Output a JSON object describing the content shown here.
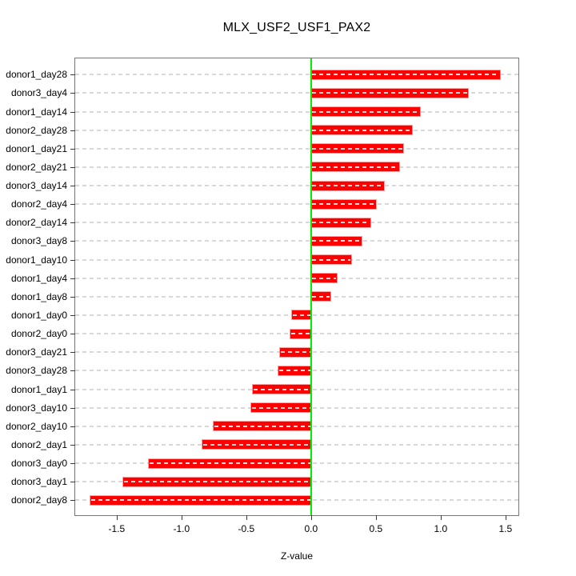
{
  "chart_data": {
    "type": "bar",
    "orientation": "horizontal",
    "title": "MLX_USF2_USF1_PAX2",
    "xlabel": "Z-value",
    "ylabel": "",
    "categories": [
      "donor1_day28",
      "donor3_day4",
      "donor1_day14",
      "donor2_day28",
      "donor1_day21",
      "donor2_day21",
      "donor3_day14",
      "donor2_day4",
      "donor2_day14",
      "donor3_day8",
      "donor1_day10",
      "donor1_day4",
      "donor1_day8",
      "donor1_day0",
      "donor2_day0",
      "donor3_day21",
      "donor3_day28",
      "donor1_day1",
      "donor3_day10",
      "donor2_day10",
      "donor2_day1",
      "donor3_day0",
      "donor3_day1",
      "donor2_day8"
    ],
    "values": [
      1.46,
      1.21,
      0.84,
      0.78,
      0.71,
      0.68,
      0.56,
      0.5,
      0.46,
      0.39,
      0.31,
      0.2,
      0.15,
      -0.15,
      -0.16,
      -0.24,
      -0.25,
      -0.45,
      -0.46,
      -0.75,
      -0.84,
      -1.25,
      -1.45,
      -1.7
    ],
    "x_tick_labels": [
      "-1.5",
      "-1.0",
      "-0.5",
      "0.0",
      "0.5",
      "1.0",
      "1.5"
    ],
    "x_tick_values": [
      -1.5,
      -1.0,
      -0.5,
      0.0,
      0.5,
      1.0,
      1.5
    ],
    "xlim": [
      -1.82,
      1.6
    ],
    "zero_reference_line": 0.0,
    "grid": "horizontal-dashed",
    "legend": null,
    "bar_color": "#ff0000",
    "zero_line_color": "#00ee00",
    "gridline_color": "#d8d8d8"
  }
}
